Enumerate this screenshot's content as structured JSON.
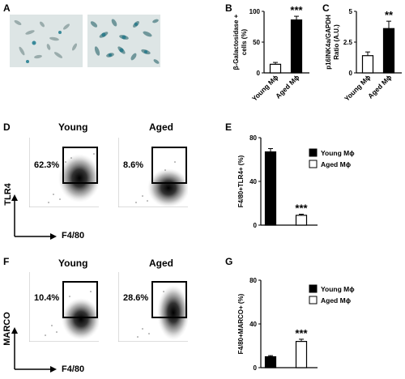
{
  "panels": {
    "A": "A",
    "B": "B",
    "C": "C",
    "D": "D",
    "E": "E",
    "F": "F",
    "G": "G"
  },
  "flow": {
    "young_label": "Young",
    "aged_label": "Aged",
    "x_axis_label": "F4/80",
    "tlr4_axis_label": "TLR4",
    "marco_axis_label": "MARCO",
    "d_young_pct": "62.3%",
    "d_aged_pct": "8.6%",
    "f_young_pct": "10.4%",
    "f_aged_pct": "28.6%"
  },
  "chart_data": [
    {
      "id": "B",
      "type": "bar",
      "categories": [
        "Young Mϕ",
        "Aged Mϕ"
      ],
      "values": [
        14,
        86
      ],
      "errors": [
        3,
        6
      ],
      "fills": [
        "#ffffff",
        "#000000"
      ],
      "ylabel": "β-Galactosidase + cells (%)",
      "ylabel_line1": "β-Galactosidase +",
      "ylabel_line2": "cells (%)",
      "ylim": [
        0,
        100
      ],
      "yticks": [
        "0",
        "50",
        "100"
      ],
      "significance": "***"
    },
    {
      "id": "C",
      "type": "bar",
      "categories": [
        "Young Mϕ",
        "Aged Mϕ"
      ],
      "values": [
        1.4,
        3.6
      ],
      "errors": [
        0.3,
        0.6
      ],
      "fills": [
        "#ffffff",
        "#000000"
      ],
      "ylabel_line1": "p16INK4a/GAPDH",
      "ylabel_line2": "Ratio (A.U.)",
      "ylim": [
        0,
        5
      ],
      "yticks": [
        "0",
        "2.5",
        "5"
      ],
      "significance": "**"
    },
    {
      "id": "E",
      "type": "bar",
      "categories": [
        "Young Mϕ",
        "Aged Mϕ"
      ],
      "values": [
        67,
        9
      ],
      "errors": [
        3,
        1
      ],
      "fills": [
        "#000000",
        "#ffffff"
      ],
      "ylabel": "F4/80+TLR4+ (%)",
      "ylim": [
        0,
        80
      ],
      "yticks": [
        "0",
        "40",
        "80"
      ],
      "legend": [
        "Young Mϕ",
        "Aged Mϕ"
      ],
      "significance": "***"
    },
    {
      "id": "G",
      "type": "bar",
      "categories": [
        "Young Mϕ",
        "Aged Mϕ"
      ],
      "values": [
        10,
        24
      ],
      "errors": [
        1,
        2
      ],
      "fills": [
        "#000000",
        "#ffffff"
      ],
      "ylabel": "F4/80+MARCO+ (%)",
      "ylim": [
        0,
        80
      ],
      "yticks": [
        "0",
        "40",
        "80"
      ],
      "legend": [
        "Young Mϕ",
        "Aged Mϕ"
      ],
      "significance": "***"
    }
  ]
}
